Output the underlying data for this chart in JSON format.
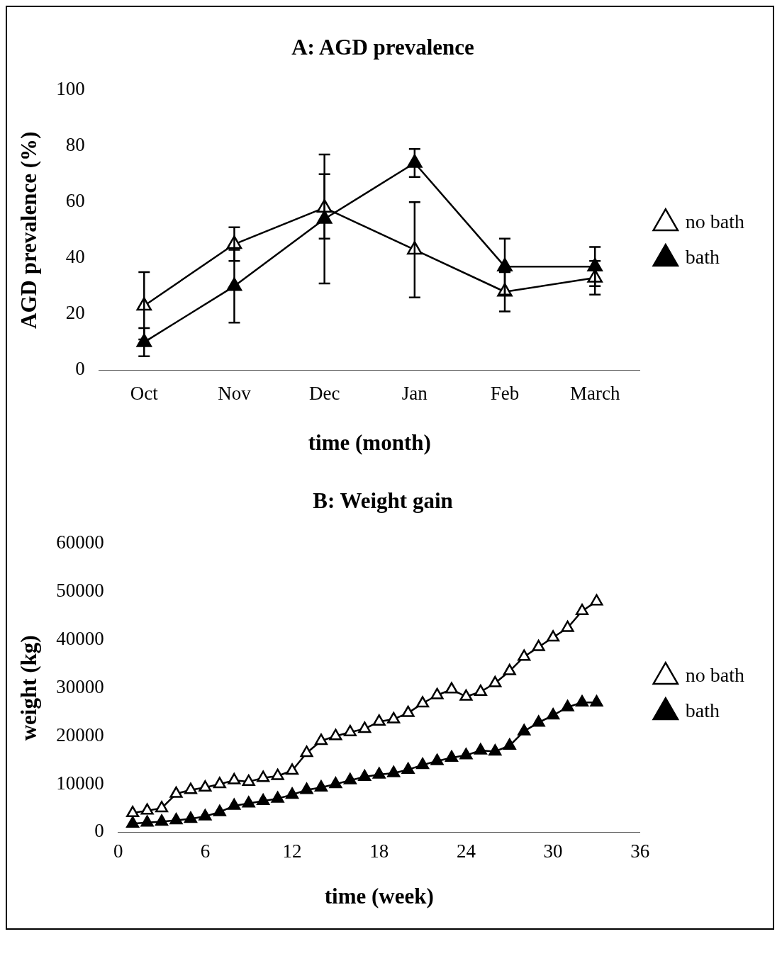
{
  "chart_data": [
    {
      "type": "line",
      "title": "A: AGD prevalence",
      "xlabel": "time (month)",
      "ylabel": "AGD prevalence (%)",
      "categories": [
        "Oct",
        "Nov",
        "Dec",
        "Jan",
        "Feb",
        "March"
      ],
      "ylim": [
        0,
        100
      ],
      "yticks": [
        0,
        20,
        40,
        60,
        80,
        100
      ],
      "grid": false,
      "legend": "right",
      "marker": "triangle",
      "line_style": "solid",
      "series": [
        {
          "name": "no bath",
          "color": "#000000",
          "values": [
            23,
            45,
            58,
            43,
            28,
            33
          ],
          "errors": [
            12,
            6,
            [
              47,
              70
            ],
            17,
            7,
            6
          ]
        },
        {
          "name": "bath",
          "color": "#000000",
          "values": [
            10,
            30,
            54,
            74,
            37,
            37
          ],
          "errors": [
            5,
            13,
            [
              31,
              77
            ],
            5,
            10,
            7
          ]
        }
      ]
    },
    {
      "type": "line",
      "title": "B: Weight gain",
      "xlabel": "time (week)",
      "ylabel": "weight (kg)",
      "xlim": [
        0,
        36
      ],
      "xticks": [
        0,
        6,
        12,
        18,
        24,
        30,
        36
      ],
      "ylim": [
        0,
        60000
      ],
      "yticks": [
        0,
        10000,
        20000,
        30000,
        40000,
        50000,
        60000
      ],
      "grid": false,
      "legend": "right",
      "marker": "triangle",
      "line_style": "solid",
      "x": [
        1,
        2,
        3,
        4,
        5,
        6,
        7,
        8,
        9,
        10,
        11,
        12,
        13,
        14,
        15,
        16,
        17,
        18,
        19,
        20,
        21,
        22,
        23,
        24,
        25,
        26,
        27,
        28,
        29,
        30,
        31,
        32,
        33
      ],
      "series": [
        {
          "name": "no bath",
          "color": "#000000",
          "values": [
            4000,
            4500,
            5000,
            8000,
            8800,
            9300,
            10000,
            10800,
            10500,
            11300,
            11700,
            12800,
            16500,
            19000,
            20000,
            20800,
            21500,
            23000,
            23500,
            24800,
            26800,
            28500,
            29700,
            28200,
            29200,
            31000,
            33500,
            36500,
            38500,
            40500,
            42500,
            46000,
            48000
          ]
        },
        {
          "name": "bath",
          "color": "#000000",
          "values": [
            1800,
            2000,
            2200,
            2500,
            2800,
            3300,
            4200,
            5500,
            6000,
            6500,
            7000,
            7800,
            8800,
            9300,
            10000,
            10800,
            11500,
            12000,
            12300,
            13000,
            14000,
            14800,
            15500,
            16000,
            17000,
            16800,
            18000,
            21000,
            22800,
            24300,
            26000,
            27000,
            27000
          ]
        }
      ]
    }
  ]
}
